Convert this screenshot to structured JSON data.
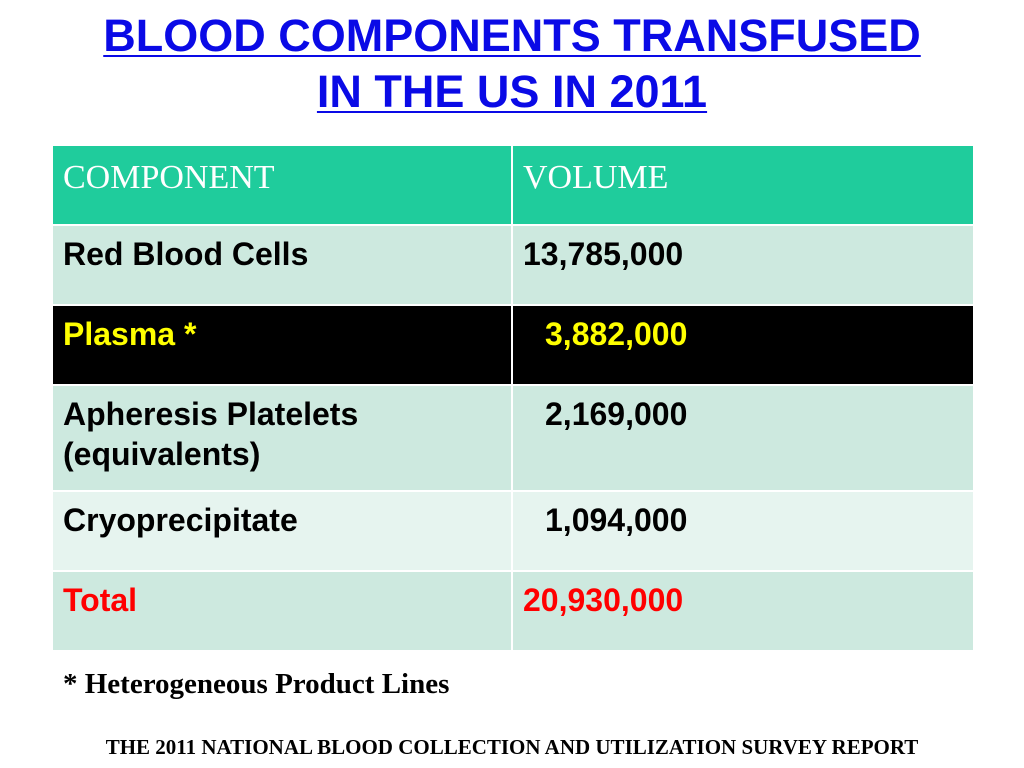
{
  "title": {
    "line1": "BLOOD COMPONENTS TRANSFUSED",
    "line2": "IN THE US IN 2011"
  },
  "table": {
    "headers": [
      "COMPONENT",
      "VOLUME"
    ],
    "rows": [
      {
        "component": "Red Blood Cells",
        "volume": "13,785,000"
      },
      {
        "component": "Plasma *",
        "volume": "3,882,000"
      },
      {
        "component": "Apheresis Platelets (equivalents)",
        "volume": "2,169,000"
      },
      {
        "component": "Cryoprecipitate",
        "volume": "1,094,000"
      },
      {
        "component": "Total",
        "volume": "20,930,000"
      }
    ]
  },
  "footnote": "* Heterogeneous Product Lines",
  "source": "THE 2011 NATIONAL BLOOD COLLECTION AND UTILIZATION SURVEY REPORT",
  "colors": {
    "title": "#0a0ae6",
    "header_bg": "#1fcc9c",
    "row_bg": "#cde9df",
    "highlight_row_bg": "#000000",
    "highlight_text": "#ffff00",
    "total_text": "#ff0000"
  }
}
